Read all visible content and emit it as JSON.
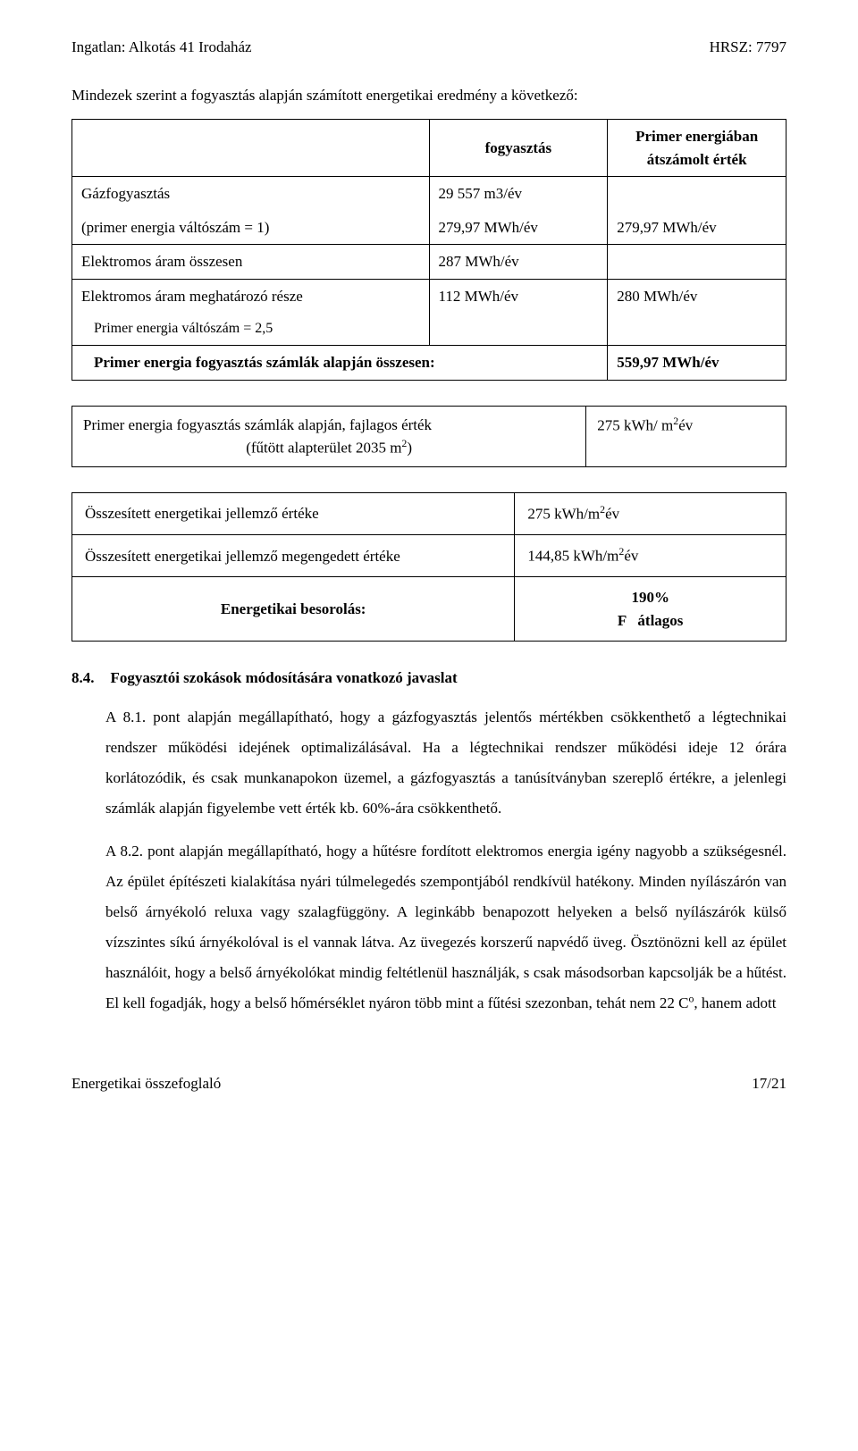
{
  "header": {
    "left": "Ingatlan: Alkotás 41 Irodaház",
    "right": "HRSZ: 7797"
  },
  "intro": "Mindezek szerint a fogyasztás alapján számított energetikai eredmény a következő:",
  "table1": {
    "headers": {
      "c1": "",
      "c2": "fogyasztás",
      "c3": "Primer energiában átszámolt érték"
    },
    "gas_label": "Gázfogyasztás",
    "gas_val": "29 557 m3/év",
    "primer1_label": "(primer energia váltószám = 1)",
    "primer1_val": "279,97 MWh/év",
    "primer1_result": "279,97 MWh/év",
    "elec_total_label": "Elektromos áram  összesen",
    "elec_total_val": "287 MWh/év",
    "elec_det_label": "Elektromos áram meghatározó része",
    "elec_det_val": "112 MWh/év",
    "elec_det_result": "280 MWh/év",
    "primer25_label": "Primer energia váltószám = 2,5",
    "sum_label": "Primer energia fogyasztás számlák alapján összesen:",
    "sum_val": "559,97 MWh/év"
  },
  "table2": {
    "row1_label": "Primer energia fogyasztás számlák alapján, fajlagos érték",
    "row1_sub_html": "(fűtött alapterület 2035 m<sup>2</sup>)",
    "row1_val_html": "275 kWh/ m<sup>2</sup>év"
  },
  "summary": {
    "row1_label": "Összesített energetikai jellemző értéke",
    "row1_val_html": "275  kWh/m<sup>2</sup>év",
    "row2_label": "Összesített energetikai jellemző megengedett értéke",
    "row2_val_html": "144,85 kWh/m<sup>2</sup>év",
    "class_label": "Energetikai besorolás:",
    "class_pct": "190%",
    "class_grade": "F   átlagos"
  },
  "section": {
    "num": "8.4.",
    "title": "Fogyasztói szokások módosítására vonatkozó javaslat"
  },
  "para1": "A 8.1. pont alapján megállapítható, hogy a gázfogyasztás jelentős mértékben csökkenthető a légtechnikai rendszer működési idejének optimalizálásával. Ha a légtechnikai rendszer működési ideje 12 órára korlátozódik, és csak munkanapokon üzemel, a gázfogyasztás a tanúsítványban szereplő értékre, a jelenlegi számlák alapján figyelembe vett érték kb. 60%-ára csökkenthető.",
  "para2_html": "A 8.2. pont alapján megállapítható, hogy a hűtésre fordított elektromos energia igény nagyobb a szükségesnél. Az épület építészeti kialakítása nyári túlmelegedés szempontjából rendkívül hatékony. Minden nyílászárón van belső árnyékoló reluxa vagy szalagfüggöny. A leginkább benapozott helyeken a belső nyílászárók külső vízszintes síkú árnyékolóval is el vannak látva. Az üvegezés korszerű napvédő üveg. Ösztönözni kell az épület használóit, hogy a belső árnyékolókat mindig feltétlenül használják, s csak másodsorban kapcsolják be a hűtést. El kell fogadják, hogy a belső hőmérséklet nyáron több mint  a fűtési szezonban, tehát nem 22 C<sup>o</sup>, hanem adott",
  "footer": {
    "left": "Energetikai összefoglaló",
    "right": "17/21"
  }
}
